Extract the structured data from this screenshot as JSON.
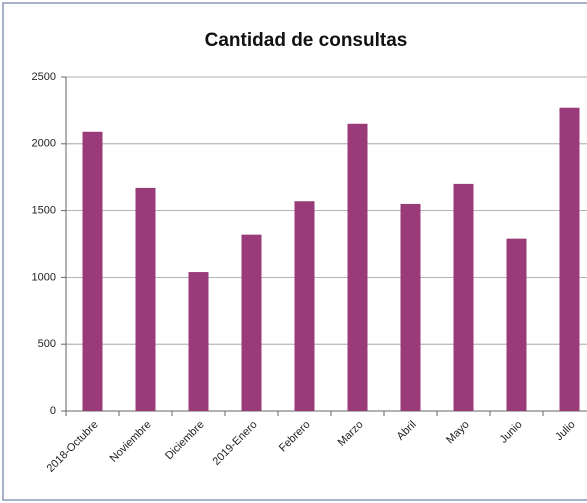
{
  "chart_data": {
    "type": "bar",
    "title": "Cantidad de consultas",
    "categories": [
      "2018-Octubre",
      "Noviembre",
      "Diciembre",
      "2019-Enero",
      "Febrero",
      "Marzo",
      "Abril",
      "Mayo",
      "Junio",
      "Julio"
    ],
    "values": [
      2090,
      1670,
      1040,
      1320,
      1570,
      2150,
      1550,
      1700,
      1290,
      2270
    ],
    "color": "#983b78",
    "ylim": [
      0,
      2500
    ],
    "yticks": [
      0,
      500,
      1000,
      1500,
      2000,
      2500
    ],
    "grid": true
  }
}
